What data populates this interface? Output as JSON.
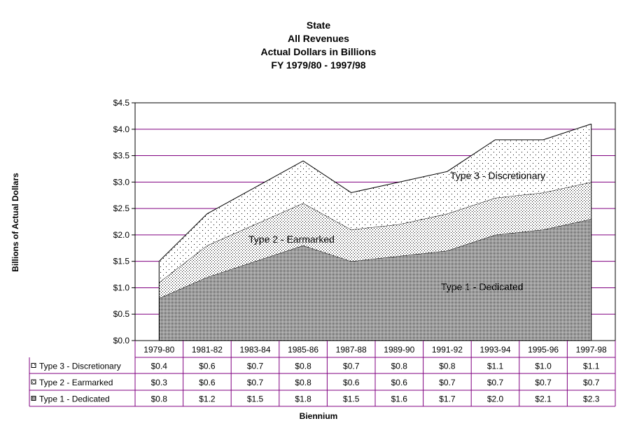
{
  "title_lines": [
    "State",
    "All Revenues",
    "Actual Dollars in  Billions",
    "FY 1979/80 - 1997/98"
  ],
  "chart_data": {
    "type": "area",
    "stacked": true,
    "categories": [
      "1979-80",
      "1981-82",
      "1983-84",
      "1985-86",
      "1987-88",
      "1989-90",
      "1991-92",
      "1993-94",
      "1995-96",
      "1997-98"
    ],
    "series": [
      {
        "name": "Type 1 - Dedicated",
        "values": [
          0.8,
          1.2,
          1.5,
          1.8,
          1.5,
          1.6,
          1.7,
          2.0,
          2.1,
          2.3
        ],
        "pattern": "dense-dots"
      },
      {
        "name": "Type 2  - Earmarked",
        "values": [
          0.3,
          0.6,
          0.7,
          0.8,
          0.6,
          0.6,
          0.7,
          0.7,
          0.7,
          0.7
        ],
        "pattern": "medium-dots"
      },
      {
        "name": "Type 3 - Discretionary",
        "values": [
          0.4,
          0.6,
          0.7,
          0.8,
          0.7,
          0.8,
          0.8,
          1.1,
          1.0,
          1.1
        ],
        "pattern": "sparse-dots"
      }
    ],
    "table_labels": {
      "Type 1 - Dedicated": [
        "$0.8",
        "$1.2",
        "$1.5",
        "$1.8",
        "$1.5",
        "$1.6",
        "$1.7",
        "$2.0",
        "$2.1",
        "$2.3"
      ],
      "Type 2  - Earmarked": [
        "$0.3",
        "$0.6",
        "$0.7",
        "$0.8",
        "$0.6",
        "$0.6",
        "$0.7",
        "$0.7",
        "$0.7",
        "$0.7"
      ],
      "Type 3 - Discretionary": [
        "$0.4",
        "$0.6",
        "$0.7",
        "$0.8",
        "$0.7",
        "$0.8",
        "$0.8",
        "$1.1",
        "$1.0",
        "$1.1"
      ]
    },
    "table_row_order": [
      "Type 3 - Discretionary",
      "Type 2  - Earmarked",
      "Type 1 - Dedicated"
    ],
    "ylim": [
      0,
      4.5
    ],
    "yticks": [
      "$0.0",
      "$0.5",
      "$1.0",
      "$1.5",
      "$2.0",
      "$2.5",
      "$3.0",
      "$3.5",
      "$4.0",
      "$4.5"
    ],
    "ylabel": "Billions of Actual Dollars",
    "xlabel": "Biennium",
    "grid": true,
    "gridline_color": "#800080",
    "in_chart_labels": [
      "Type 3 - Discretionary",
      "Type 2  - Earmarked",
      "Type 1 - Dedicated"
    ]
  }
}
